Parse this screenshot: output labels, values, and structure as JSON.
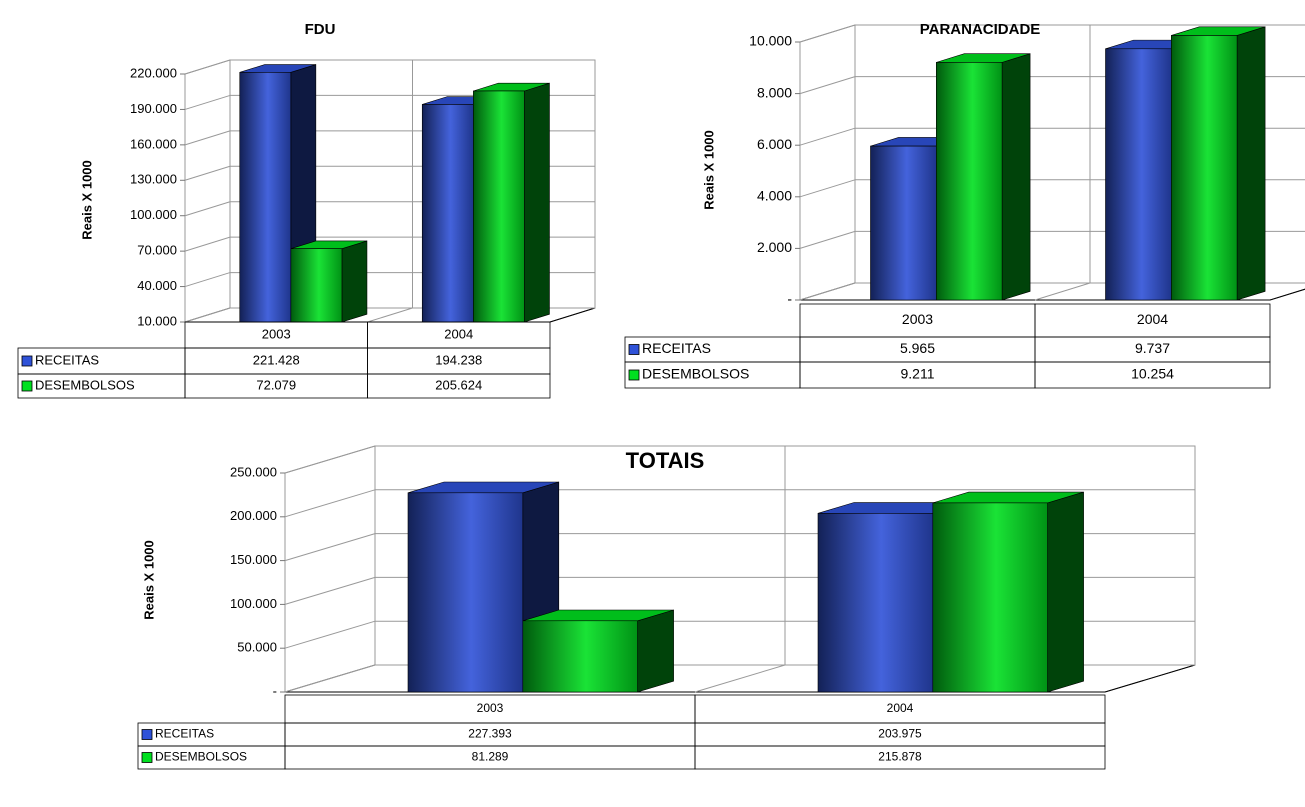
{
  "chart_data": [
    {
      "type": "bar",
      "title": "FDU",
      "y_label": "Reais X 1000",
      "categories": [
        "2003",
        "2004"
      ],
      "series": [
        {
          "name": "RECEITAS",
          "color": "#2f52d8",
          "values": [
            221428,
            194238
          ],
          "value_labels": [
            "221.428",
            "194.238"
          ]
        },
        {
          "name": "DESEMBOLSOS",
          "color": "#00e020",
          "values": [
            72079,
            205624
          ],
          "value_labels": [
            "72.079",
            "205.624"
          ]
        }
      ],
      "ylim": [
        10000,
        220000
      ],
      "yticks": [
        {
          "value": 10000,
          "label": "10.000"
        },
        {
          "value": 40000,
          "label": "40.000"
        },
        {
          "value": 70000,
          "label": "70.000"
        },
        {
          "value": 100000,
          "label": "100.000"
        },
        {
          "value": 130000,
          "label": "130.000"
        },
        {
          "value": 160000,
          "label": "160.000"
        },
        {
          "value": 190000,
          "label": "190.000"
        },
        {
          "value": 220000,
          "label": "220.000"
        }
      ],
      "grid": true
    },
    {
      "type": "bar",
      "title": "PARANACIDADE",
      "y_label": "Reais X 1000",
      "categories": [
        "2003",
        "2004"
      ],
      "series": [
        {
          "name": "RECEITAS",
          "color": "#2f52d8",
          "values": [
            5965,
            9737
          ],
          "value_labels": [
            "5.965",
            "9.737"
          ]
        },
        {
          "name": "DESEMBOLSOS",
          "color": "#00e020",
          "values": [
            9211,
            10254
          ],
          "value_labels": [
            "9.211",
            "10.254"
          ]
        }
      ],
      "ylim": [
        0,
        10000
      ],
      "yticks": [
        {
          "value": 0,
          "label": "-"
        },
        {
          "value": 2000,
          "label": "2.000"
        },
        {
          "value": 4000,
          "label": "4.000"
        },
        {
          "value": 6000,
          "label": "6.000"
        },
        {
          "value": 8000,
          "label": "8.000"
        },
        {
          "value": 10000,
          "label": "10.000"
        }
      ],
      "grid": true
    },
    {
      "type": "bar",
      "title": "TOTAIS",
      "y_label": "Reais X 1000",
      "categories": [
        "2003",
        "2004"
      ],
      "series": [
        {
          "name": "RECEITAS",
          "color": "#2f52d8",
          "values": [
            227393,
            203975
          ],
          "value_labels": [
            "227.393",
            "203.975"
          ]
        },
        {
          "name": "DESEMBOLSOS",
          "color": "#00e020",
          "values": [
            81289,
            215878
          ],
          "value_labels": [
            "81.289",
            "215.878"
          ]
        }
      ],
      "ylim": [
        0,
        250000
      ],
      "yticks": [
        {
          "value": 0,
          "label": "-"
        },
        {
          "value": 50000,
          "label": "50.000"
        },
        {
          "value": 100000,
          "label": "100.000"
        },
        {
          "value": 150000,
          "label": "150.000"
        },
        {
          "value": 200000,
          "label": "200.000"
        },
        {
          "value": 250000,
          "label": "250.000"
        }
      ],
      "grid": true
    }
  ]
}
